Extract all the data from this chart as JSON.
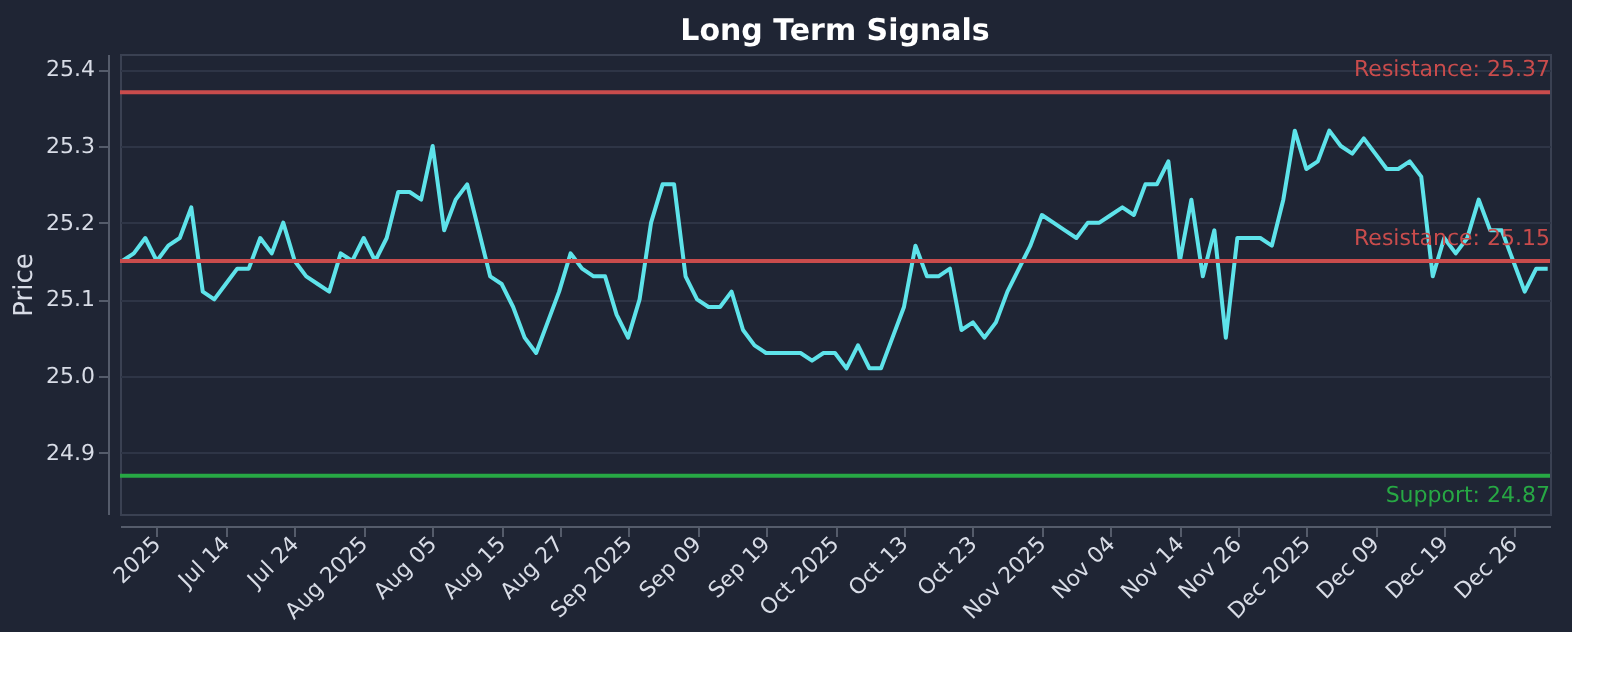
{
  "chart_data": {
    "type": "line",
    "title": "Long Term Signals",
    "ylabel": "Price",
    "categories": [
      null,
      null,
      null,
      "2025",
      null,
      null,
      null,
      null,
      null,
      "Jul 14",
      null,
      null,
      null,
      null,
      null,
      "Jul 24",
      null,
      null,
      null,
      null,
      null,
      "Aug 2025",
      null,
      null,
      null,
      null,
      null,
      "Aug 05",
      null,
      null,
      null,
      null,
      null,
      "Aug 15",
      null,
      null,
      null,
      null,
      "Aug 27",
      null,
      null,
      null,
      null,
      null,
      "Sep 2025",
      null,
      null,
      null,
      null,
      null,
      "Sep 09",
      null,
      null,
      null,
      null,
      null,
      "Sep 19",
      null,
      null,
      null,
      null,
      null,
      "Oct 2025",
      null,
      null,
      null,
      null,
      null,
      "Oct 13",
      null,
      null,
      null,
      null,
      null,
      "Oct 23",
      null,
      null,
      null,
      null,
      null,
      "Nov 2025",
      null,
      null,
      null,
      null,
      null,
      "Nov 04",
      null,
      null,
      null,
      null,
      null,
      "Nov 14",
      null,
      null,
      null,
      null,
      "Nov 26",
      null,
      null,
      null,
      null,
      null,
      "Dec 2025",
      null,
      null,
      null,
      null,
      null,
      "Dec 09",
      null,
      null,
      null,
      null,
      null,
      "Dec 19",
      null,
      null,
      null,
      null,
      null,
      "Dec 26",
      null,
      null,
      null
    ],
    "series": [
      {
        "color": "#5ee3ea",
        "values": [
          25.15,
          25.16,
          25.18,
          25.15,
          25.17,
          25.18,
          25.22,
          25.11,
          25.1,
          25.12,
          25.14,
          25.14,
          25.18,
          25.16,
          25.2,
          25.15,
          25.13,
          25.12,
          25.11,
          25.16,
          25.15,
          25.18,
          25.15,
          25.18,
          25.24,
          25.24,
          25.23,
          25.3,
          25.19,
          25.23,
          25.25,
          25.19,
          25.13,
          25.12,
          25.09,
          25.05,
          25.03,
          25.07,
          25.11,
          25.16,
          25.14,
          25.13,
          25.13,
          25.08,
          25.05,
          25.1,
          25.2,
          25.25,
          25.25,
          25.13,
          25.1,
          25.09,
          25.09,
          25.11,
          25.06,
          25.04,
          25.03,
          25.03,
          25.03,
          25.03,
          25.02,
          25.03,
          25.03,
          25.01,
          25.04,
          25.01,
          25.01,
          25.05,
          25.09,
          25.17,
          25.13,
          25.13,
          25.14,
          25.06,
          25.07,
          25.05,
          25.07,
          25.11,
          25.14,
          25.17,
          25.21,
          25.2,
          25.19,
          25.18,
          25.2,
          25.2,
          25.21,
          25.22,
          25.21,
          25.25,
          25.25,
          25.28,
          25.15,
          25.23,
          25.13,
          25.19,
          25.05,
          25.18,
          25.18,
          25.18,
          25.17,
          25.23,
          25.32,
          25.27,
          25.28,
          25.32,
          25.3,
          25.29,
          25.31,
          25.29,
          25.27,
          25.27,
          25.28,
          25.26,
          25.13,
          25.18,
          25.16,
          25.18,
          25.23,
          25.19,
          25.19,
          25.15,
          25.11,
          25.14,
          25.14
        ]
      }
    ],
    "ylim": [
      24.82,
      25.42
    ],
    "yticks": [
      24.9,
      {
        "value": 25.0,
        "label": "25.0"
      },
      25.1,
      25.2,
      25.3,
      25.4
    ],
    "ref_lines": [
      {
        "axis": "y",
        "value": 25.37,
        "label": "Resistance: 25.37",
        "color": "#c94c4c"
      },
      {
        "axis": "y",
        "value": 25.15,
        "label": "Resistance: 25.15",
        "color": "#c94c4c"
      },
      {
        "axis": "y",
        "value": 24.87,
        "label": "Support: 24.87",
        "color": "#27a844"
      }
    ],
    "grid": "y",
    "marker": "none",
    "line_style": "solid"
  }
}
